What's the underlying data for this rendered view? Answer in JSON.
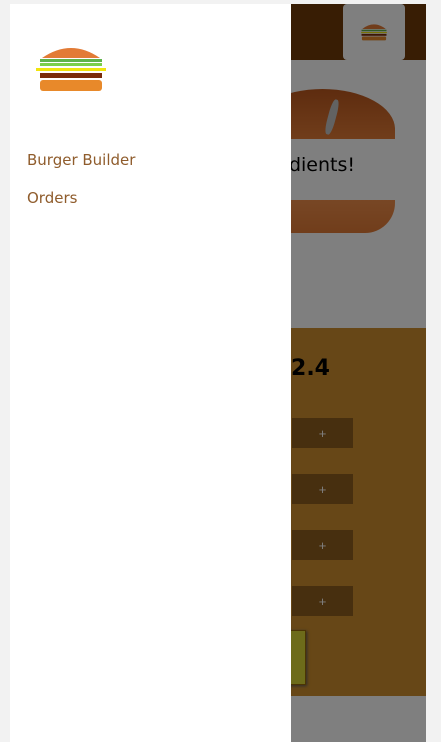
{
  "background_app": {
    "ingredients_message": "edients!",
    "price_text": "2.4",
    "more_button_label": "+",
    "more_buttons": [
      "+",
      "+",
      "+",
      "+"
    ]
  },
  "drawer": {
    "nav_items": [
      {
        "label": "Burger Builder"
      },
      {
        "label": "Orders"
      }
    ]
  },
  "icons": {
    "toolbar_logo": "burger-logo-icon",
    "drawer_logo": "burger-logo-icon"
  },
  "colors": {
    "toolbar": "#703b09",
    "build_controls": "#cf8f2e",
    "more_button": "#8f5e1e",
    "nav_link": "#8f5c2c"
  }
}
